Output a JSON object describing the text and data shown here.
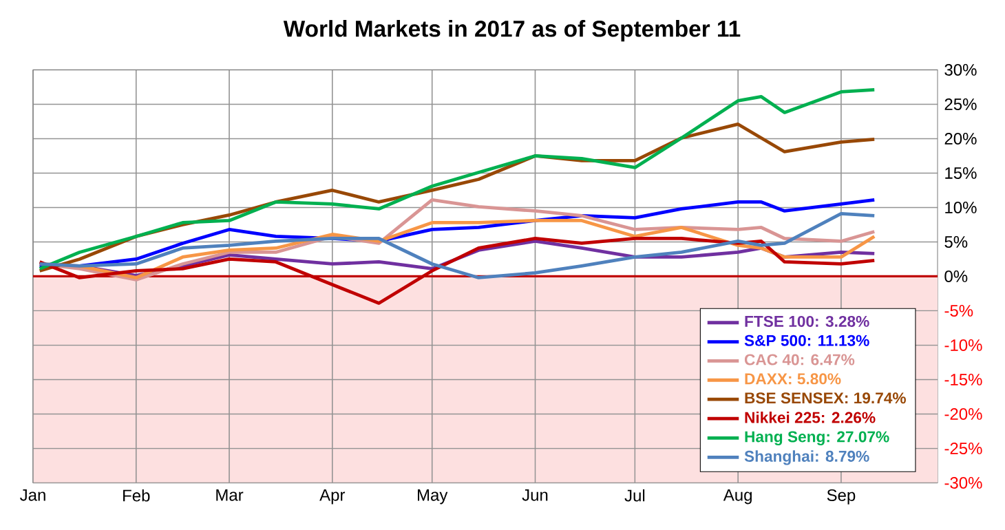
{
  "chart_data": {
    "type": "line",
    "title": "World Markets in 2017 as of September 11",
    "x": [
      "2017-01-03",
      "2017-01-15",
      "2017-02-01",
      "2017-02-15",
      "2017-03-01",
      "2017-03-15",
      "2017-04-01",
      "2017-04-15",
      "2017-05-01",
      "2017-05-15",
      "2017-06-01",
      "2017-06-15",
      "2017-07-01",
      "2017-07-15",
      "2017-08-01",
      "2017-08-08",
      "2017-08-15",
      "2017-09-01",
      "2017-09-11"
    ],
    "series": [
      {
        "name": "FTSE 100: 3.28%",
        "color": "#7030a0",
        "values": [
          1.5,
          1.5,
          0.1,
          1.5,
          3.1,
          2.5,
          1.8,
          2.1,
          1.1,
          3.8,
          5.1,
          4.1,
          2.8,
          2.8,
          3.5,
          4.1,
          2.8,
          3.5,
          3.3
        ]
      },
      {
        "name": "S&P 500: 11.13%",
        "color": "#0000ff",
        "values": [
          1.6,
          1.5,
          2.5,
          4.8,
          6.8,
          5.8,
          5.5,
          5.1,
          6.8,
          7.1,
          8.1,
          8.8,
          8.5,
          9.8,
          10.8,
          10.8,
          9.5,
          10.5,
          11.1
        ]
      },
      {
        "name": "CAC 40: 6.47%",
        "color": "#d99594",
        "values": [
          1.8,
          1.1,
          -0.5,
          1.8,
          3.5,
          3.5,
          5.8,
          4.8,
          11.1,
          10.1,
          9.5,
          8.8,
          6.8,
          7.1,
          6.8,
          7.1,
          5.5,
          5.1,
          6.5
        ]
      },
      {
        "name": "DAXX: 5.80%",
        "color": "#f79646",
        "values": [
          1.8,
          1.5,
          -0.2,
          2.8,
          3.8,
          4.1,
          6.1,
          5.1,
          7.8,
          7.8,
          8.1,
          8.1,
          5.8,
          7.1,
          4.5,
          4.1,
          2.8,
          2.8,
          5.8
        ]
      },
      {
        "name": "BSE SENSEX: 19.74%",
        "color": "#984806",
        "values": [
          0.8,
          2.5,
          5.8,
          7.5,
          8.9,
          10.8,
          12.5,
          10.8,
          12.5,
          14.1,
          17.5,
          16.8,
          16.8,
          20.1,
          22.1,
          20.1,
          18.1,
          19.5,
          19.9
        ]
      },
      {
        "name": "Nikkei 225: 2.26%",
        "color": "#c00000",
        "values": [
          2.1,
          -0.2,
          0.8,
          1.1,
          2.5,
          2.1,
          -1.2,
          -3.9,
          0.8,
          4.1,
          5.5,
          4.8,
          5.5,
          5.5,
          4.8,
          5.1,
          2.1,
          1.8,
          2.3
        ]
      },
      {
        "name": "Hang Seng: 27.07%",
        "color": "#00b050",
        "values": [
          1.1,
          3.5,
          5.8,
          7.8,
          8.1,
          10.8,
          10.5,
          9.8,
          13.1,
          15.1,
          17.5,
          17.1,
          15.8,
          20.1,
          25.5,
          26.1,
          23.8,
          26.8,
          27.1
        ]
      },
      {
        "name": "Shanghai: 8.79%",
        "color": "#4f81bd",
        "values": [
          1.8,
          1.5,
          1.8,
          4.1,
          4.5,
          5.1,
          5.5,
          5.5,
          1.8,
          -0.2,
          0.5,
          1.5,
          2.8,
          3.5,
          5.1,
          4.5,
          4.8,
          9.1,
          8.8
        ]
      }
    ],
    "xlim": [
      "2017-01-01",
      "2017-09-30"
    ],
    "xticks": [
      {
        "value": "2017-01-01",
        "label": "Jan"
      },
      {
        "value": "2017-02-01",
        "label": "Feb"
      },
      {
        "value": "2017-03-01",
        "label": "Mar"
      },
      {
        "value": "2017-04-01",
        "label": "Apr"
      },
      {
        "value": "2017-05-01",
        "label": "May"
      },
      {
        "value": "2017-06-01",
        "label": "Jun"
      },
      {
        "value": "2017-07-01",
        "label": "Jul"
      },
      {
        "value": "2017-08-01",
        "label": "Aug"
      },
      {
        "value": "2017-09-01",
        "label": "Sep"
      }
    ],
    "ylim": [
      -30,
      30
    ],
    "yticks": [
      {
        "value": -30,
        "label": "-30%"
      },
      {
        "value": -25,
        "label": "-25%"
      },
      {
        "value": -20,
        "label": "-20%"
      },
      {
        "value": -15,
        "label": "-15%"
      },
      {
        "value": -10,
        "label": "-10%"
      },
      {
        "value": -5,
        "label": "-5%"
      },
      {
        "value": 0,
        "label": "0%"
      },
      {
        "value": 5,
        "label": "5%"
      },
      {
        "value": 10,
        "label": "10%"
      },
      {
        "value": 15,
        "label": "15%"
      },
      {
        "value": 20,
        "label": "20%"
      },
      {
        "value": 25,
        "label": "25%"
      },
      {
        "value": 30,
        "label": "30%"
      }
    ],
    "bands": [
      {
        "axis": "y",
        "from": -30,
        "to": 0,
        "color": "#fde0e0"
      }
    ],
    "ref_lines": [
      {
        "axis": "y",
        "value": 0,
        "color": "#c00000"
      }
    ],
    "grid": true,
    "legend": "bottom right",
    "line_style": "solid"
  }
}
